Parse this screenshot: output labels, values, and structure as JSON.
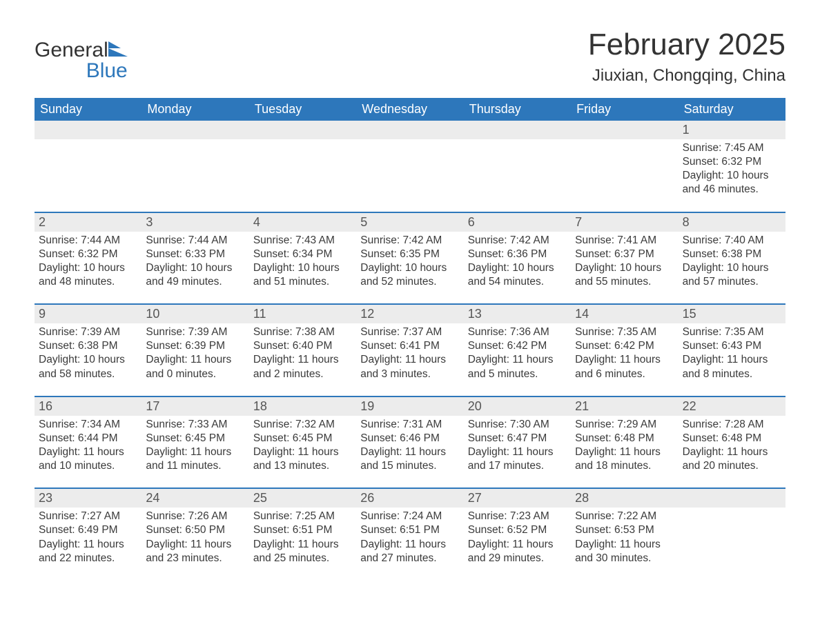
{
  "logo": {
    "line1": "General",
    "line2": "Blue"
  },
  "title": "February 2025",
  "location": "Jiuxian, Chongqing, China",
  "colors": {
    "header_bg": "#2d77bb",
    "header_text": "#ffffff",
    "daynum_bg": "#ececec",
    "border": "#2d77bb",
    "text": "#333333"
  },
  "dow": [
    "Sunday",
    "Monday",
    "Tuesday",
    "Wednesday",
    "Thursday",
    "Friday",
    "Saturday"
  ],
  "weeks": [
    [
      {
        "n": "",
        "sr": "",
        "ss": "",
        "dl": ""
      },
      {
        "n": "",
        "sr": "",
        "ss": "",
        "dl": ""
      },
      {
        "n": "",
        "sr": "",
        "ss": "",
        "dl": ""
      },
      {
        "n": "",
        "sr": "",
        "ss": "",
        "dl": ""
      },
      {
        "n": "",
        "sr": "",
        "ss": "",
        "dl": ""
      },
      {
        "n": "",
        "sr": "",
        "ss": "",
        "dl": ""
      },
      {
        "n": "1",
        "sr": "7:45 AM",
        "ss": "6:32 PM",
        "dl": "10 hours and 46 minutes."
      }
    ],
    [
      {
        "n": "2",
        "sr": "7:44 AM",
        "ss": "6:32 PM",
        "dl": "10 hours and 48 minutes."
      },
      {
        "n": "3",
        "sr": "7:44 AM",
        "ss": "6:33 PM",
        "dl": "10 hours and 49 minutes."
      },
      {
        "n": "4",
        "sr": "7:43 AM",
        "ss": "6:34 PM",
        "dl": "10 hours and 51 minutes."
      },
      {
        "n": "5",
        "sr": "7:42 AM",
        "ss": "6:35 PM",
        "dl": "10 hours and 52 minutes."
      },
      {
        "n": "6",
        "sr": "7:42 AM",
        "ss": "6:36 PM",
        "dl": "10 hours and 54 minutes."
      },
      {
        "n": "7",
        "sr": "7:41 AM",
        "ss": "6:37 PM",
        "dl": "10 hours and 55 minutes."
      },
      {
        "n": "8",
        "sr": "7:40 AM",
        "ss": "6:38 PM",
        "dl": "10 hours and 57 minutes."
      }
    ],
    [
      {
        "n": "9",
        "sr": "7:39 AM",
        "ss": "6:38 PM",
        "dl": "10 hours and 58 minutes."
      },
      {
        "n": "10",
        "sr": "7:39 AM",
        "ss": "6:39 PM",
        "dl": "11 hours and 0 minutes."
      },
      {
        "n": "11",
        "sr": "7:38 AM",
        "ss": "6:40 PM",
        "dl": "11 hours and 2 minutes."
      },
      {
        "n": "12",
        "sr": "7:37 AM",
        "ss": "6:41 PM",
        "dl": "11 hours and 3 minutes."
      },
      {
        "n": "13",
        "sr": "7:36 AM",
        "ss": "6:42 PM",
        "dl": "11 hours and 5 minutes."
      },
      {
        "n": "14",
        "sr": "7:35 AM",
        "ss": "6:42 PM",
        "dl": "11 hours and 6 minutes."
      },
      {
        "n": "15",
        "sr": "7:35 AM",
        "ss": "6:43 PM",
        "dl": "11 hours and 8 minutes."
      }
    ],
    [
      {
        "n": "16",
        "sr": "7:34 AM",
        "ss": "6:44 PM",
        "dl": "11 hours and 10 minutes."
      },
      {
        "n": "17",
        "sr": "7:33 AM",
        "ss": "6:45 PM",
        "dl": "11 hours and 11 minutes."
      },
      {
        "n": "18",
        "sr": "7:32 AM",
        "ss": "6:45 PM",
        "dl": "11 hours and 13 minutes."
      },
      {
        "n": "19",
        "sr": "7:31 AM",
        "ss": "6:46 PM",
        "dl": "11 hours and 15 minutes."
      },
      {
        "n": "20",
        "sr": "7:30 AM",
        "ss": "6:47 PM",
        "dl": "11 hours and 17 minutes."
      },
      {
        "n": "21",
        "sr": "7:29 AM",
        "ss": "6:48 PM",
        "dl": "11 hours and 18 minutes."
      },
      {
        "n": "22",
        "sr": "7:28 AM",
        "ss": "6:48 PM",
        "dl": "11 hours and 20 minutes."
      }
    ],
    [
      {
        "n": "23",
        "sr": "7:27 AM",
        "ss": "6:49 PM",
        "dl": "11 hours and 22 minutes."
      },
      {
        "n": "24",
        "sr": "7:26 AM",
        "ss": "6:50 PM",
        "dl": "11 hours and 23 minutes."
      },
      {
        "n": "25",
        "sr": "7:25 AM",
        "ss": "6:51 PM",
        "dl": "11 hours and 25 minutes."
      },
      {
        "n": "26",
        "sr": "7:24 AM",
        "ss": "6:51 PM",
        "dl": "11 hours and 27 minutes."
      },
      {
        "n": "27",
        "sr": "7:23 AM",
        "ss": "6:52 PM",
        "dl": "11 hours and 29 minutes."
      },
      {
        "n": "28",
        "sr": "7:22 AM",
        "ss": "6:53 PM",
        "dl": "11 hours and 30 minutes."
      },
      {
        "n": "",
        "sr": "",
        "ss": "",
        "dl": ""
      }
    ]
  ],
  "labels": {
    "sunrise": "Sunrise:",
    "sunset": "Sunset:",
    "daylight": "Daylight:"
  }
}
